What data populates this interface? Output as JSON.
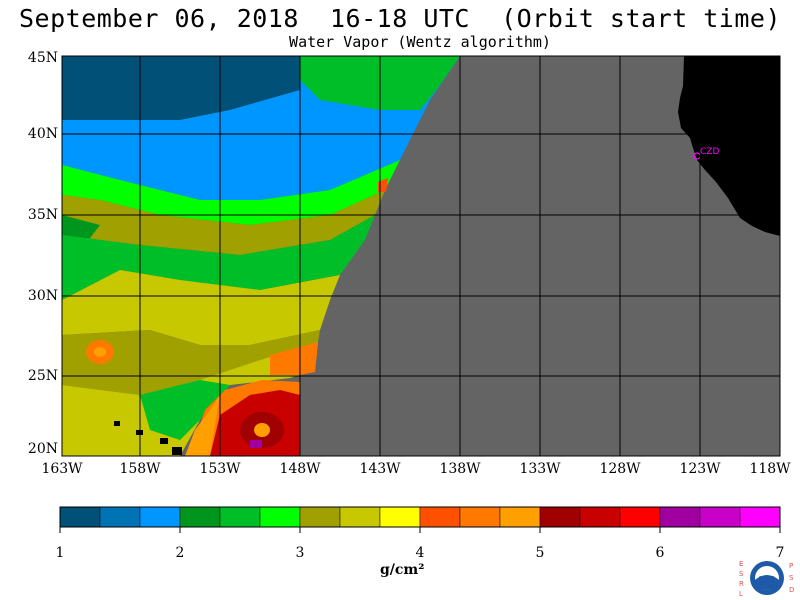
{
  "title": "September 06, 2018  16-18 UTC  (Orbit start time)",
  "subtitle": "Water Vapor (Wentz algorithm)",
  "map": {
    "lat_labels": [
      "45N",
      "40N",
      "35N",
      "30N",
      "25N",
      "20N"
    ],
    "lon_labels": [
      "163W",
      "158W",
      "153W",
      "148W",
      "143W",
      "138W",
      "133W",
      "128W",
      "123W",
      "118W"
    ],
    "station_label": "CZD",
    "no_data_color": "#646464",
    "land_color": "#000000",
    "grid_color": "#000000",
    "station_color": "#ff00ff"
  },
  "colorbar": {
    "colors": [
      "#005078",
      "#0073b4",
      "#0096ff",
      "#00961e",
      "#00be28",
      "#00ff00",
      "#a0a000",
      "#c8c800",
      "#ffff00",
      "#ff5000",
      "#ff7800",
      "#ffa000",
      "#a00000",
      "#c80000",
      "#ff0000",
      "#a000a0",
      "#c800c8",
      "#ff00ff"
    ],
    "tick_labels": [
      "1",
      "2",
      "3",
      "4",
      "5",
      "6",
      "7"
    ],
    "units": "g/cm²"
  },
  "logo": {
    "left_letters": "ESRL",
    "right_letters": "PSD",
    "center_text": "NOAA"
  }
}
